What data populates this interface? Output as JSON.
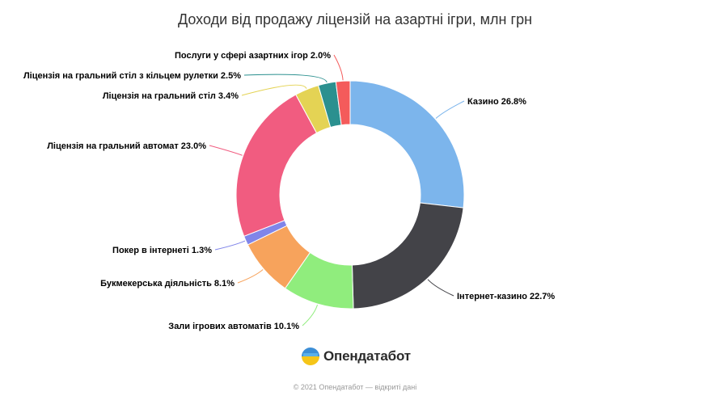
{
  "chart_data": {
    "type": "pie",
    "donut": true,
    "title": "Доходи від продажу ліцензій на азартні ігри, млн грн",
    "slices": [
      {
        "label": "Казино 26.8%",
        "value": 26.8,
        "color": "#7cb5ec"
      },
      {
        "label": "Інтернет-казино 22.7%",
        "value": 22.7,
        "color": "#434348"
      },
      {
        "label": "Зали ігрових автоматів 10.1%",
        "value": 10.1,
        "color": "#90ed7d"
      },
      {
        "label": "Букмекерська діяльність 8.1%",
        "value": 8.1,
        "color": "#f7a35c"
      },
      {
        "label": "Покер в інтернеті 1.3%",
        "value": 1.3,
        "color": "#8085e9"
      },
      {
        "label": "Ліцензія на гральний автомат 23.0%",
        "value": 23.0,
        "color": "#f15c80"
      },
      {
        "label": "Ліцензія на гральний стіл 3.4%",
        "value": 3.4,
        "color": "#e4d354"
      },
      {
        "label": "Ліцензія на гральний стіл з кільцем рулетки 2.5%",
        "value": 2.5,
        "color": "#2b908f"
      },
      {
        "label": "Послуги у сфері азартних ігор 2.0%",
        "value": 2.0,
        "color": "#f45b5b"
      }
    ],
    "legend": "none"
  },
  "branding": {
    "logo_text": "Опендатабот",
    "copyright": "© 2021 Опендатабот — відкриті дані"
  }
}
